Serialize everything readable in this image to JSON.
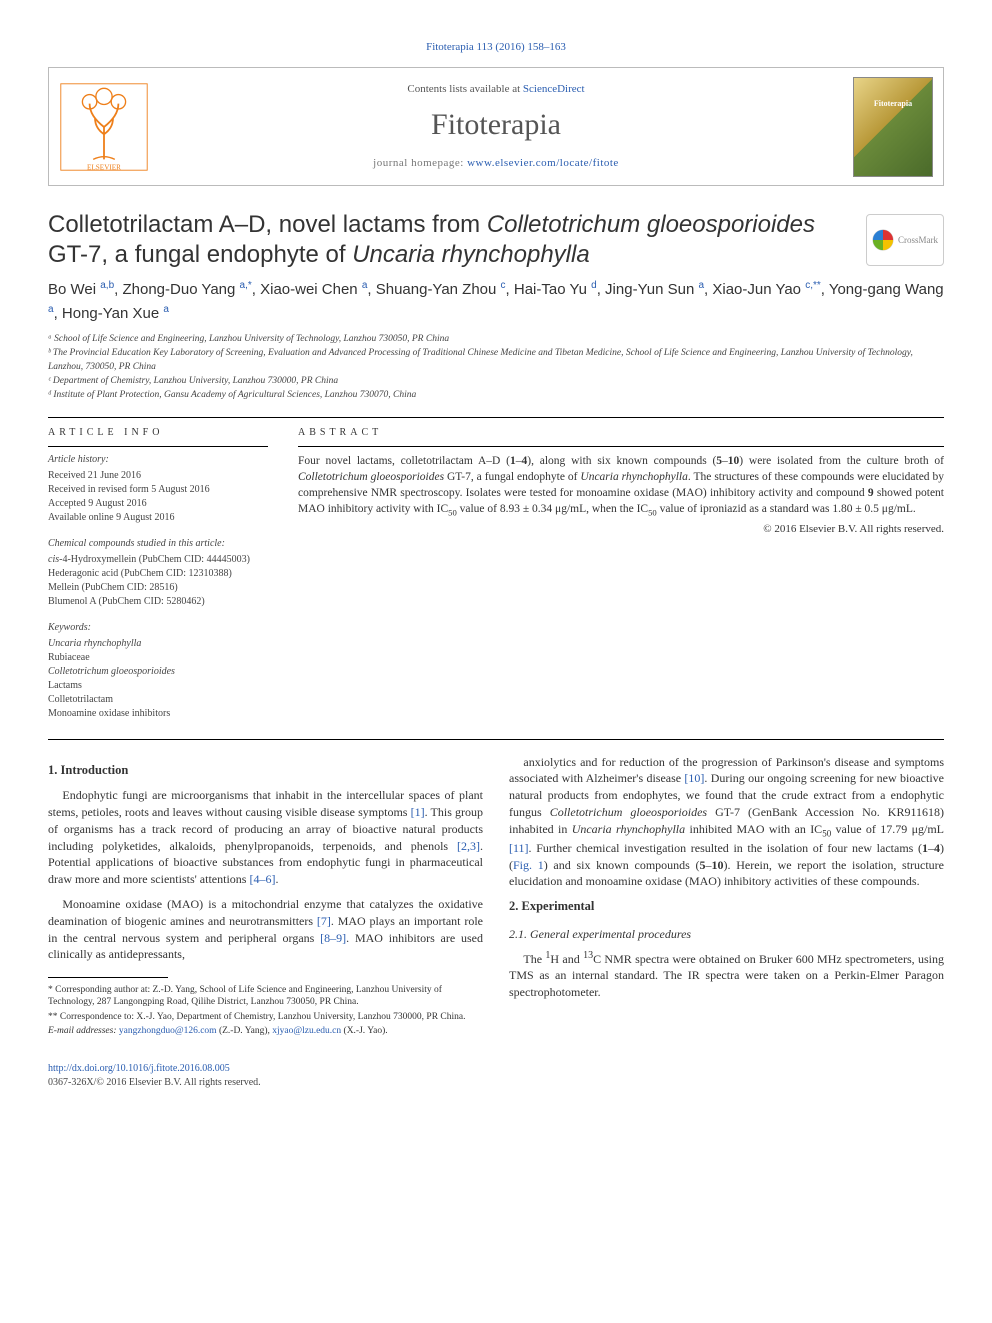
{
  "journal_ref": "Fitoterapia 113 (2016) 158–163",
  "header": {
    "contents_line_pre": "Contents lists available at ",
    "contents_link": "ScienceDirect",
    "journal_name": "Fitoterapia",
    "homepage_pre": "journal homepage: ",
    "homepage_link": "www.elsevier.com/locate/fitote",
    "logo_fill": "#ee7f1a",
    "right_logo_label": "Fitoterapia"
  },
  "crossmark_label": "CrossMark",
  "title_html": "Colletotrilactam A–D, novel lactams from <i>Colletotrichum gloeosporioides</i> GT-7, a fungal endophyte of <i>Uncaria rhynchophylla</i>",
  "authors_html": "Bo Wei <sup>a,b</sup>, Zhong-Duo Yang <sup>a,*</sup>, Xiao-wei Chen <sup>a</sup>, Shuang-Yan Zhou <sup>c</sup>, Hai-Tao Yu <sup>d</sup>, Jing-Yun Sun <sup>a</sup>, Xiao-Jun Yao <sup>c,**</sup>, Yong-gang Wang <sup>a</sup>, Hong-Yan Xue <sup>a</sup>",
  "affiliations": [
    "ᵃ School of Life Science and Engineering, Lanzhou University of Technology, Lanzhou 730050, PR China",
    "ᵇ The Provincial Education Key Laboratory of Screening, Evaluation and Advanced Processing of Traditional Chinese Medicine and Tibetan Medicine, School of Life Science and Engineering, Lanzhou University of Technology, Lanzhou, 730050, PR China",
    "ᶜ Department of Chemistry, Lanzhou University, Lanzhou 730000, PR China",
    "ᵈ Institute of Plant Protection, Gansu Academy of Agricultural Sciences, Lanzhou 730070, China"
  ],
  "info": {
    "label": "article info",
    "history_heading": "Article history:",
    "history": [
      "Received 21 June 2016",
      "Received in revised form 5 August 2016",
      "Accepted 9 August 2016",
      "Available online 9 August 2016"
    ],
    "compounds_heading": "Chemical compounds studied in this article:",
    "compounds": [
      "cis-4-Hydroxymellein (PubChem CID: 44445003)",
      "Hederagonic acid (PubChem CID: 12310388)",
      "Mellein (PubChem CID: 28516)",
      "Blumenol A (PubChem CID: 5280462)"
    ],
    "keywords_heading": "Keywords:",
    "keywords": [
      "Uncaria rhynchophylla",
      "Rubiaceae",
      "Colletotrichum gloeosporioides",
      "Lactams",
      "Colletotrilactam",
      "Monoamine oxidase inhibitors"
    ]
  },
  "abstract": {
    "label": "abstract",
    "text_html": "Four novel lactams, colletotrilactam A–D (<b>1</b>–<b>4</b>), along with six known compounds (<b>5</b>–<b>10</b>) were isolated from the culture broth of <i>Colletotrichum gloeosporioides</i> GT-7, a fungal endophyte of <i>Uncaria rhynchophylla</i>. The structures of these compounds were elucidated by comprehensive NMR spectroscopy. Isolates were tested for monoamine oxidase (MAO) inhibitory activity and compound <b>9</b> showed potent MAO inhibitory activity with IC<sub>50</sub> value of 8.93 ± 0.34 μg/mL, when the IC<sub>50</sub> value of iproniazid as a standard was 1.80 ± 0.5 μg/mL.",
    "copyright": "© 2016 Elsevier B.V. All rights reserved."
  },
  "body": {
    "intro_heading": "1. Introduction",
    "intro_p1_html": "Endophytic fungi are microorganisms that inhabit in the intercellular spaces of plant stems, petioles, roots and leaves without causing visible disease symptoms <a href='#'>[1]</a>. This group of organisms has a track record of producing an array of bioactive natural products including polyketides, alkaloids, phenylpropanoids, terpenoids, and phenols <a href='#'>[2,3]</a>. Potential applications of bioactive substances from endophytic fungi in pharmaceutical draw more and more scientists' attentions <a href='#'>[4–6]</a>.",
    "intro_p2_html": "Monoamine oxidase (MAO) is a mitochondrial enzyme that catalyzes the oxidative deamination of biogenic amines and neurotransmitters <a href='#'>[7]</a>. MAO plays an important role in the central nervous system and peripheral organs <a href='#'>[8–9]</a>. MAO inhibitors are used clinically as antidepressants,",
    "intro_p3_html": "anxiolytics and for reduction of the progression of Parkinson's disease and symptoms associated with Alzheimer's disease <a href='#'>[10]</a>. During our ongoing screening for new bioactive natural products from endophytes, we found that the crude extract from a endophytic fungus <i>Colletotrichum gloeosporioides</i> GT-7 (GenBank Accession No. KR911618) inhabited in <i>Uncaria rhynchophylla</i> inhibited MAO with an IC<sub>50</sub> value of 17.79 μg/mL <a href='#'>[11]</a>. Further chemical investigation resulted in the isolation of four new lactams (<b>1</b>–<b>4</b>) (<a href='#'>Fig. 1</a>) and six known compounds (<b>5</b>–<b>10</b>). Herein, we report the isolation, structure elucidation and monoamine oxidase (MAO) inhibitory activities of these compounds.",
    "exp_heading": "2. Experimental",
    "exp_sub_heading": "2.1. General experimental procedures",
    "exp_p1_html": "The <sup>1</sup>H and <sup>13</sup>C NMR spectra were obtained on Bruker 600 MHz spectrometers, using TMS as an internal standard. The IR spectra were taken on a Perkin-Elmer Paragon spectrophotometer."
  },
  "footnotes": {
    "star1": "* Corresponding author at: Z.-D. Yang, School of Life Science and Engineering, Lanzhou University of Technology, 287 Langongping Road, Qilihe District, Lanzhou 730050, PR China.",
    "star2": "** Correspondence to: X.-J. Yao, Department of Chemistry, Lanzhou University, Lanzhou 730000, PR China.",
    "email_label": "E-mail addresses:",
    "email1": "yangzhongduo@126.com",
    "email1_who": " (Z.-D. Yang), ",
    "email2": "xjyao@lzu.edu.cn",
    "email2_who": " (X.-J. Yao)."
  },
  "footer": {
    "doi": "http://dx.doi.org/10.1016/j.fitote.2016.08.005",
    "issn_line": "0367-326X/© 2016 Elsevier B.V. All rights reserved."
  },
  "colors": {
    "link": "#2a5db0",
    "text": "#333333",
    "rule": "#000000",
    "elsevier_orange": "#ee7f1a",
    "crossmark_red": "#d33",
    "crossmark_yellow": "#f3c200",
    "crossmark_green": "#6ab023",
    "crossmark_blue": "#2a7fd4"
  }
}
